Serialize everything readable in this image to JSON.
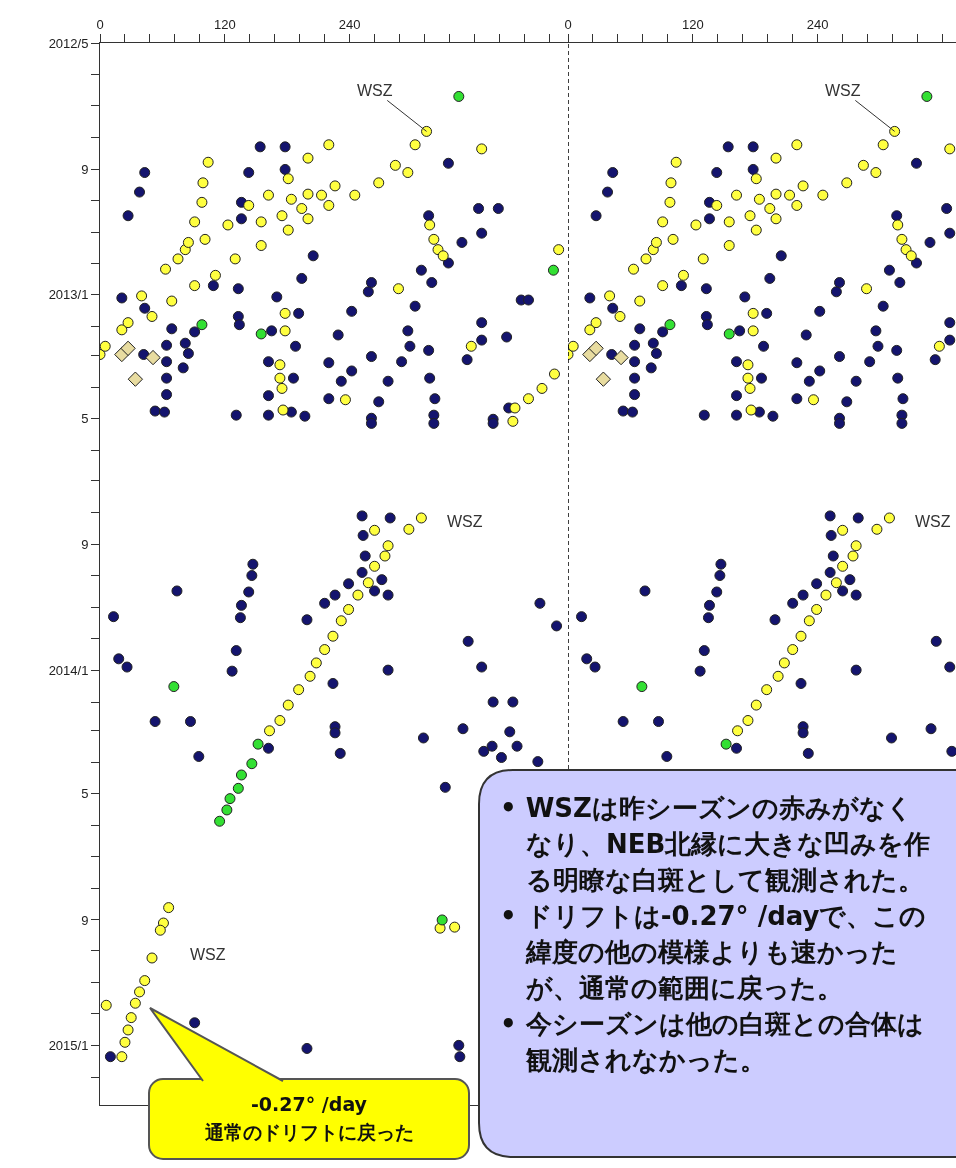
{
  "chart_data": [
    {
      "type": "scatter",
      "marker": "circle",
      "orientation": "horizontal",
      "xlim": [
        0,
        450
      ],
      "xticks": [
        0,
        {
          "value": 24,
          "label": null
        },
        {
          "value": 48,
          "label": null
        },
        {
          "value": 72,
          "label": null
        },
        {
          "value": 96,
          "label": null
        },
        120,
        {
          "value": 144,
          "label": null
        },
        {
          "value": 168,
          "label": null
        },
        {
          "value": 192,
          "label": null
        },
        {
          "value": 216,
          "label": null
        },
        240,
        {
          "value": 264,
          "label": null
        },
        {
          "value": 288,
          "label": null
        },
        {
          "value": 312,
          "label": null
        },
        {
          "value": 336,
          "label": null
        },
        {
          "value": 360,
          "label": null
        },
        {
          "value": 384,
          "label": null
        },
        {
          "value": 408,
          "label": null
        },
        {
          "value": 432,
          "label": null
        }
      ],
      "ylim": [
        "2015-02-28",
        "2012-05-01"
      ],
      "yticks": [
        {
          "value": "2012-05-01",
          "label": "2012/5"
        },
        {
          "value": "2012-06-01",
          "label": null
        },
        {
          "value": "2012-07-01",
          "label": null
        },
        {
          "value": "2012-08-01",
          "label": null
        },
        {
          "value": "2012-09-01",
          "label": "9"
        },
        {
          "value": "2012-10-01",
          "label": null
        },
        {
          "value": "2012-11-01",
          "label": null
        },
        {
          "value": "2012-12-01",
          "label": null
        },
        {
          "value": "2013-01-01",
          "label": "2013/1"
        },
        {
          "value": "2013-02-01",
          "label": null
        },
        {
          "value": "2013-03-01",
          "label": null
        },
        {
          "value": "2013-04-01",
          "label": null
        },
        {
          "value": "2013-05-01",
          "label": "5"
        },
        {
          "value": "2013-06-01",
          "label": null
        },
        {
          "value": "2013-07-01",
          "label": null
        },
        {
          "value": "2013-08-01",
          "label": null
        },
        {
          "value": "2013-09-01",
          "label": "9"
        },
        {
          "value": "2013-10-01",
          "label": null
        },
        {
          "value": "2013-11-01",
          "label": null
        },
        {
          "value": "2013-12-01",
          "label": null
        },
        {
          "value": "2014-01-01",
          "label": "2014/1"
        },
        {
          "value": "2014-02-01",
          "label": null
        },
        {
          "value": "2014-03-01",
          "label": null
        },
        {
          "value": "2014-04-01",
          "label": null
        },
        {
          "value": "2014-05-01",
          "label": "5"
        },
        {
          "value": "2014-06-01",
          "label": null
        },
        {
          "value": "2014-07-01",
          "label": null
        },
        {
          "value": "2014-08-01",
          "label": null
        },
        {
          "value": "2014-09-01",
          "label": "9"
        },
        {
          "value": "2014-10-01",
          "label": null
        },
        {
          "value": "2014-11-01",
          "label": null
        },
        {
          "value": "2014-12-01",
          "label": null
        },
        {
          "value": "2015-01-01",
          "label": "2015/1"
        },
        {
          "value": "2015-02-01",
          "label": null
        }
      ],
      "series": [
        {
          "color": "#14146e",
          "values": [
            43,
            38,
            27,
            154,
            143,
            136,
            136,
            178,
            178,
            205,
            194,
            191,
            188,
            186,
            184,
            170,
            165,
            162,
            162,
            162,
            316,
            364,
            383,
            367,
            348,
            335,
            319,
            303,
            296,
            298,
            290,
            277,
            268,
            261,
            316,
            317,
            322,
            321,
            335,
            405,
            412,
            367,
            367,
            391,
            353,
            378,
            393,
            309,
            261,
            258,
            242,
            229,
            261,
            220,
            242,
            232,
            220,
            197,
            131,
            133,
            133,
            134,
            109,
            91,
            21,
            43,
            69,
            64,
            64,
            64,
            64,
            53,
            62,
            82,
            85,
            80,
            42,
            261,
            321,
            378,
            252,
            279,
            253,
            255,
            252,
            239,
            226,
            216,
            271,
            277,
            264,
            147,
            146,
            143,
            136,
            135,
            74,
            13,
            18,
            26,
            131,
            127,
            199,
            224,
            277,
            423,
            439,
            354,
            367,
            378,
            397,
            53,
            87,
            95,
            226,
            226,
            231,
            311,
            349,
            377,
            369,
            394,
            401,
            386,
            421,
            162,
            332,
            10,
            91,
            199,
            345,
            346
          ],
          "x": [
            "2012-09-04",
            "2012-09-23",
            "2012-10-16",
            "2012-08-10",
            "2012-09-04",
            "2012-10-03",
            "2012-10-19",
            "2012-08-10",
            "2012-09-01",
            "2012-11-24",
            "2012-12-16",
            "2013-01-19",
            "2013-02-20",
            "2013-03-23",
            "2013-04-25",
            "2013-01-03",
            "2013-02-05",
            "2013-03-07",
            "2013-04-09",
            "2013-04-28",
            "2012-10-16",
            "2012-10-09",
            "2012-10-09",
            "2012-11-02",
            "2012-11-11",
            "2012-12-01",
            "2012-12-20",
            "2013-01-12",
            "2013-02-05",
            "2013-02-20",
            "2013-03-07",
            "2013-03-26",
            "2013-04-15",
            "2013-05-01",
            "2013-02-24",
            "2013-03-23",
            "2013-04-12",
            "2013-04-28",
            "2012-08-26",
            "2013-01-06",
            "2013-01-06",
            "2013-01-28",
            "2013-02-14",
            "2013-02-11",
            "2013-03-05",
            "2013-05-02",
            "2013-04-21",
            "2012-12-08",
            "2012-12-20",
            "2012-12-29",
            "2013-01-17",
            "2013-02-09",
            "2013-03-02",
            "2013-03-08",
            "2013-03-16",
            "2013-03-26",
            "2013-04-12",
            "2013-04-29",
            "2013-04-28",
            "2012-12-26",
            "2013-01-22",
            "2013-01-30",
            "2012-12-23",
            "2013-02-06",
            "2013-01-04",
            "2013-01-14",
            "2013-02-03",
            "2013-02-19",
            "2013-03-07",
            "2013-03-23",
            "2013-04-08",
            "2013-04-24",
            "2013-04-25",
            "2013-02-17",
            "2013-02-27",
            "2013-03-13",
            "2013-02-28",
            "2013-05-06",
            "2013-05-06",
            "2013-05-06",
            "2013-08-04",
            "2013-08-06",
            "2013-08-23",
            "2013-09-12",
            "2013-09-28",
            "2013-10-09",
            "2013-10-20",
            "2013-10-28",
            "2013-10-05",
            "2013-10-20",
            "2013-10-16",
            "2013-09-20",
            "2013-10-01",
            "2013-10-17",
            "2013-10-30",
            "2013-11-11",
            "2013-10-16",
            "2013-11-10",
            "2013-12-21",
            "2013-12-29",
            "2013-12-13",
            "2014-01-02",
            "2013-11-13",
            "2014-01-14",
            "2014-01-01",
            "2013-10-28",
            "2013-11-19",
            "2013-12-04",
            "2013-12-29",
            "2014-02-01",
            "2014-02-01",
            "2014-02-20",
            "2014-02-20",
            "2014-03-26",
            "2014-02-25",
            "2014-03-03",
            "2014-03-23",
            "2014-03-08",
            "2014-02-27",
            "2014-03-16",
            "2014-03-21",
            "2014-03-02",
            "2014-03-16",
            "2014-03-27",
            "2014-03-31",
            "2014-03-18",
            "2014-04-25",
            "2015-01-12",
            "2014-12-10",
            "2015-01-04",
            "2015-01-01",
            "2015-01-12"
          ]
        },
        {
          "color": "#ffff40",
          "values": [
            0,
            21,
            40,
            63,
            82,
            101,
            123,
            143,
            162,
            181,
            200,
            220,
            5,
            27,
            50,
            69,
            91,
            111,
            130,
            155,
            181,
            200,
            220,
            245,
            268,
            284,
            303,
            314,
            104,
            99,
            98,
            91,
            85,
            75,
            155,
            175,
            194,
            213,
            226,
            184,
            200,
            317,
            321,
            325,
            330,
            296,
            367,
            287,
            357,
            441,
            178,
            178,
            173,
            173,
            175,
            176,
            236,
            399,
            412,
            425,
            437,
            397,
            309,
            297,
            264,
            277,
            274,
            264,
            258,
            248,
            239,
            232,
            224,
            216,
            208,
            202,
            191,
            181,
            173,
            163,
            66,
            61,
            58,
            50,
            43,
            38,
            34,
            30,
            27,
            24,
            21,
            6,
            327,
            341
          ],
          "x": [
            "2013-02-28",
            "2013-02-04",
            "2013-01-02",
            "2012-12-07",
            "2012-11-18",
            "2012-11-08",
            "2012-10-25",
            "2012-10-06",
            "2012-09-26",
            "2012-09-10",
            "2012-08-21",
            "2012-08-08",
            "2013-02-20",
            "2013-01-28",
            "2013-01-22",
            "2013-01-07",
            "2012-12-23",
            "2012-12-13",
            "2012-11-27",
            "2012-11-14",
            "2012-10-30",
            "2012-10-19",
            "2012-10-06",
            "2012-09-26",
            "2012-09-14",
            "2012-08-28",
            "2012-08-08",
            "2012-07-26",
            "2012-08-25",
            "2012-09-14",
            "2012-10-03",
            "2012-10-22",
            "2012-11-11",
            "2012-11-27",
            "2012-10-22",
            "2012-10-16",
            "2012-10-09",
            "2012-09-26",
            "2012-09-17",
            "2012-09-30",
            "2012-09-25",
            "2012-10-25",
            "2012-11-08",
            "2012-11-18",
            "2012-11-24",
            "2012-09-04",
            "2012-08-12",
            "2012-12-26",
            "2013-02-20",
            "2012-11-18",
            "2013-01-19",
            "2013-02-05",
            "2013-03-10",
            "2013-03-23",
            "2013-04-02",
            "2013-04-23",
            "2013-04-13",
            "2013-04-21",
            "2013-04-12",
            "2013-04-02",
            "2013-03-19",
            "2013-05-04",
            "2013-08-06",
            "2013-08-17",
            "2013-08-18",
            "2013-09-02",
            "2013-09-12",
            "2013-09-22",
            "2013-10-08",
            "2013-10-20",
            "2013-11-03",
            "2013-11-14",
            "2013-11-29",
            "2013-12-12",
            "2013-12-25",
            "2014-01-07",
            "2014-01-20",
            "2014-02-04",
            "2014-02-19",
            "2014-03-01",
            "2014-08-20",
            "2014-09-04",
            "2014-09-11",
            "2014-10-08",
            "2014-10-30",
            "2014-11-10",
            "2014-11-21",
            "2014-12-05",
            "2014-12-17",
            "2014-12-29",
            "2015-01-12",
            "2014-11-23",
            "2014-09-09",
            "2014-09-08"
          ]
        },
        {
          "color": "#33e033",
          "values": [
            152,
            146,
            136,
            133,
            125,
            122,
            115,
            329,
            345,
            98,
            155,
            436,
            71
          ],
          "x": [
            "2014-03-14",
            "2014-04-02",
            "2014-04-13",
            "2014-04-26",
            "2014-05-06",
            "2014-05-17",
            "2014-05-28",
            "2014-09-01",
            "2012-06-22",
            "2013-01-30",
            "2013-02-08",
            "2012-12-08",
            "2014-01-17"
          ]
        },
        {
          "color": "#e8dca0",
          "marker": "diamond",
          "values": [
            21,
            34,
            51,
            27
          ],
          "x": [
            "2013-02-28",
            "2013-03-24",
            "2013-03-03",
            "2013-02-22"
          ]
        }
      ],
      "annotations": [
        {
          "text": "WSZ",
          "x": 314,
          "y": "2012-07-26"
        },
        {
          "text": "WSZ",
          "x": 309,
          "y": "2013-08-06"
        },
        {
          "text": "WSZ",
          "x": 50,
          "y": "2014-10-08"
        },
        "-0.27° /day\n通常のドリフトに戻った"
      ]
    },
    {
      "type": "scatter",
      "marker": "circle",
      "orientation": "horizontal",
      "tick_labels": "x",
      "xlim": [
        0,
        373
      ],
      "xticks": [
        0,
        {
          "value": 24,
          "label": null
        },
        {
          "value": 48,
          "label": null
        },
        {
          "value": 72,
          "label": null
        },
        {
          "value": 96,
          "label": null
        },
        120,
        {
          "value": 144,
          "label": null
        },
        {
          "value": 168,
          "label": null
        },
        {
          "value": 192,
          "label": null
        },
        {
          "value": 216,
          "label": null
        },
        240,
        {
          "value": 264,
          "label": null
        },
        {
          "value": 288,
          "label": null
        },
        {
          "value": 312,
          "label": null
        },
        {
          "value": 336,
          "label": null
        },
        {
          "value": 360,
          "label": null
        }
      ],
      "ylim": [
        "2015-02-28",
        "2012-05-01"
      ],
      "ref_lines": [
        {
          "axis": "x",
          "value": 0,
          "line_style": "dashed"
        }
      ],
      "series": [
        {
          "color": "#14146e",
          "values": [
            43,
            38,
            27,
            154,
            143,
            136,
            136,
            178,
            178,
            205,
            194,
            191,
            188,
            186,
            184,
            170,
            165,
            162,
            162,
            162,
            316,
            364,
            367,
            348,
            335,
            319,
            303,
            296,
            298,
            290,
            277,
            268,
            261,
            316,
            317,
            322,
            321,
            335,
            367,
            367,
            353,
            309,
            261,
            258,
            242,
            229,
            261,
            220,
            242,
            232,
            220,
            197,
            131,
            133,
            133,
            134,
            109,
            91,
            21,
            43,
            69,
            64,
            64,
            64,
            64,
            53,
            62,
            82,
            85,
            80,
            42,
            261,
            321,
            252,
            279,
            253,
            255,
            252,
            239,
            226,
            216,
            271,
            277,
            264,
            147,
            146,
            143,
            136,
            135,
            74,
            13,
            18,
            26,
            131,
            127,
            199,
            224,
            277,
            354,
            367,
            53,
            87,
            95,
            226,
            226,
            231,
            311,
            349,
            369,
            162
          ],
          "x": [
            "2012-09-04",
            "2012-09-23",
            "2012-10-16",
            "2012-08-10",
            "2012-09-04",
            "2012-10-03",
            "2012-10-19",
            "2012-08-10",
            "2012-09-01",
            "2012-11-24",
            "2012-12-16",
            "2013-01-19",
            "2013-02-20",
            "2013-03-23",
            "2013-04-25",
            "2013-01-03",
            "2013-02-05",
            "2013-03-07",
            "2013-04-09",
            "2013-04-28",
            "2012-10-16",
            "2012-10-09",
            "2012-11-02",
            "2012-11-11",
            "2012-12-01",
            "2012-12-20",
            "2013-01-12",
            "2013-02-05",
            "2013-02-20",
            "2013-03-07",
            "2013-03-26",
            "2013-04-15",
            "2013-05-01",
            "2013-02-24",
            "2013-03-23",
            "2013-04-12",
            "2013-04-28",
            "2012-08-26",
            "2013-01-28",
            "2013-02-14",
            "2013-03-05",
            "2012-12-08",
            "2012-12-20",
            "2012-12-29",
            "2013-01-17",
            "2013-02-09",
            "2013-03-02",
            "2013-03-08",
            "2013-03-16",
            "2013-03-26",
            "2013-04-12",
            "2013-04-29",
            "2013-04-28",
            "2012-12-26",
            "2013-01-22",
            "2013-01-30",
            "2012-12-23",
            "2013-02-06",
            "2013-01-04",
            "2013-01-14",
            "2013-02-03",
            "2013-02-19",
            "2013-03-07",
            "2013-03-23",
            "2013-04-08",
            "2013-04-24",
            "2013-04-25",
            "2013-02-17",
            "2013-02-27",
            "2013-03-13",
            "2013-02-28",
            "2013-05-06",
            "2013-05-06",
            "2013-08-04",
            "2013-08-06",
            "2013-08-23",
            "2013-09-12",
            "2013-09-28",
            "2013-10-09",
            "2013-10-20",
            "2013-10-28",
            "2013-10-05",
            "2013-10-20",
            "2013-10-16",
            "2013-09-20",
            "2013-10-01",
            "2013-10-17",
            "2013-10-30",
            "2013-11-11",
            "2013-10-16",
            "2013-11-10",
            "2013-12-21",
            "2013-12-29",
            "2013-12-13",
            "2014-01-02",
            "2013-11-13",
            "2014-01-14",
            "2014-01-01",
            "2013-12-04",
            "2013-12-29",
            "2014-02-20",
            "2014-02-20",
            "2014-03-26",
            "2014-02-25",
            "2014-03-03",
            "2014-03-23",
            "2014-03-08",
            "2014-02-27",
            "2014-03-21",
            "2014-03-18"
          ]
        },
        {
          "color": "#ffff40",
          "values": [
            0,
            21,
            40,
            63,
            82,
            101,
            123,
            143,
            162,
            181,
            200,
            220,
            5,
            27,
            50,
            69,
            91,
            111,
            130,
            155,
            181,
            200,
            220,
            245,
            268,
            284,
            303,
            314,
            104,
            99,
            98,
            91,
            85,
            75,
            155,
            175,
            194,
            213,
            226,
            184,
            200,
            317,
            321,
            325,
            330,
            296,
            367,
            287,
            357,
            178,
            178,
            173,
            173,
            175,
            176,
            236,
            309,
            297,
            264,
            277,
            274,
            264,
            258,
            248,
            239,
            232,
            224,
            216,
            208,
            202,
            191,
            181,
            173,
            163
          ],
          "x": [
            "2013-02-28",
            "2013-02-04",
            "2013-01-02",
            "2012-12-07",
            "2012-11-18",
            "2012-11-08",
            "2012-10-25",
            "2012-10-06",
            "2012-09-26",
            "2012-09-10",
            "2012-08-21",
            "2012-08-08",
            "2013-02-20",
            "2013-01-28",
            "2013-01-22",
            "2013-01-07",
            "2012-12-23",
            "2012-12-13",
            "2012-11-27",
            "2012-11-14",
            "2012-10-30",
            "2012-10-19",
            "2012-10-06",
            "2012-09-26",
            "2012-09-14",
            "2012-08-28",
            "2012-08-08",
            "2012-07-26",
            "2012-08-25",
            "2012-09-14",
            "2012-10-03",
            "2012-10-22",
            "2012-11-11",
            "2012-11-27",
            "2012-10-22",
            "2012-10-16",
            "2012-10-09",
            "2012-09-26",
            "2012-09-17",
            "2012-09-30",
            "2012-09-25",
            "2012-10-25",
            "2012-11-08",
            "2012-11-18",
            "2012-11-24",
            "2012-09-04",
            "2012-08-12",
            "2012-12-26",
            "2013-02-20",
            "2013-01-19",
            "2013-02-05",
            "2013-03-10",
            "2013-03-23",
            "2013-04-02",
            "2013-04-23",
            "2013-04-13",
            "2013-08-06",
            "2013-08-17",
            "2013-08-18",
            "2013-09-02",
            "2013-09-12",
            "2013-09-22",
            "2013-10-08",
            "2013-10-20",
            "2013-11-03",
            "2013-11-14",
            "2013-11-29",
            "2013-12-12",
            "2013-12-25",
            "2014-01-07",
            "2014-01-20",
            "2014-02-04",
            "2014-02-19",
            "2014-03-01"
          ]
        },
        {
          "color": "#33e033",
          "values": [
            152,
            345,
            98,
            155,
            71
          ],
          "x": [
            "2014-03-14",
            "2012-06-22",
            "2013-01-30",
            "2013-02-08",
            "2014-01-17"
          ]
        },
        {
          "color": "#e8dca0",
          "marker": "diamond",
          "values": [
            21,
            34,
            51,
            27
          ],
          "x": [
            "2013-02-28",
            "2013-03-24",
            "2013-03-03",
            "2013-02-22"
          ]
        }
      ],
      "annotations": [
        {
          "text": "WSZ",
          "x": 314,
          "y": "2012-07-26"
        },
        {
          "text": "WSZ",
          "x": 309,
          "y": "2013-08-06"
        },
        "• WSZは昨シーズンの赤みがなくなり、NEB北縁に大きな凹みを作る明瞭な白斑として観測された。",
        "• ドリフトは-0.27° /dayで、この緯度の他の模様よりも速かったが、通常の範囲に戻った。",
        "• 今シーズンは他の白斑との合体は観測されなかった。"
      ]
    }
  ]
}
